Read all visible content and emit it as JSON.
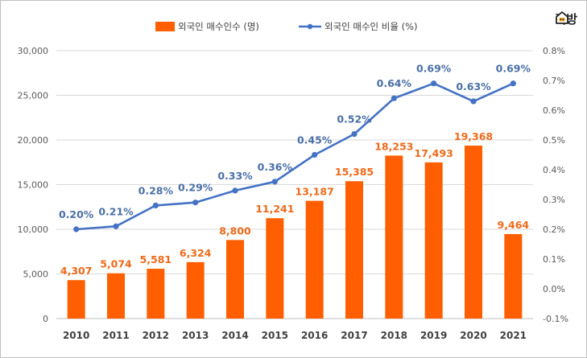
{
  "brand": {
    "name": "직방",
    "icon": "house-logo-icon",
    "accent": "#f5a623"
  },
  "legend": {
    "bar_label": "외국인 매수인수 (명)",
    "line_label": "외국인 매수인 비율 (%)"
  },
  "colors": {
    "bar": "#ff5f00",
    "bar_label": "#ed6a1a",
    "line": "#4472c4",
    "line_label": "#4a6fa5",
    "grid": "#d9d9d9"
  },
  "chart_data": {
    "type": "bar",
    "combo": "bar+line",
    "categories": [
      "2010",
      "2011",
      "2012",
      "2013",
      "2014",
      "2015",
      "2016",
      "2017",
      "2018",
      "2019",
      "2020",
      "2021"
    ],
    "series": [
      {
        "name": "외국인 매수인수 (명)",
        "type": "bar",
        "axis": "left",
        "values": [
          4307,
          5074,
          5581,
          6324,
          8800,
          11241,
          13187,
          15385,
          18253,
          17493,
          19368,
          9464
        ],
        "labels": [
          "4,307",
          "5,074",
          "5,581",
          "6,324",
          "8,800",
          "11,241",
          "13,187",
          "15,385",
          "18,253",
          "17,493",
          "19,368",
          "9,464"
        ]
      },
      {
        "name": "외국인 매수인 비율 (%)",
        "type": "line",
        "axis": "right",
        "values": [
          0.2,
          0.21,
          0.28,
          0.29,
          0.33,
          0.36,
          0.45,
          0.52,
          0.64,
          0.69,
          0.63,
          0.69
        ],
        "labels": [
          "0.20%",
          "0.21%",
          "0.28%",
          "0.29%",
          "0.33%",
          "0.36%",
          "0.45%",
          "0.52%",
          "0.64%",
          "0.69%",
          "0.63%",
          "0.69%"
        ]
      }
    ],
    "y_left": {
      "lim": [
        0,
        30000
      ],
      "ticks": [
        "0",
        "5,000",
        "10,000",
        "15,000",
        "20,000",
        "25,000",
        "30,000"
      ]
    },
    "y_right": {
      "lim": [
        -0.1,
        0.8
      ],
      "ticks": [
        "-0.1%",
        "0.0%",
        "0.1%",
        "0.2%",
        "0.3%",
        "0.4%",
        "0.5%",
        "0.6%",
        "0.7%",
        "0.8%"
      ]
    },
    "grid": true,
    "legend_position": "top-center",
    "title": "",
    "xlabel": "",
    "ylabel": ""
  }
}
